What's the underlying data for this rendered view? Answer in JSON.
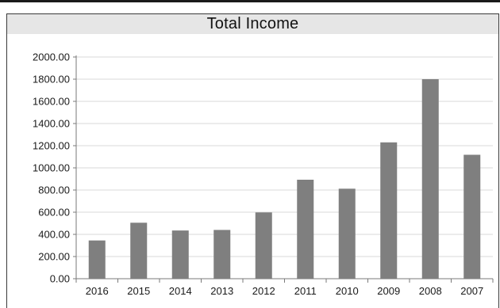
{
  "chart_data": {
    "type": "bar",
    "title": "Total Income",
    "categories": [
      "2016",
      "2015",
      "2014",
      "2013",
      "2012",
      "2011",
      "2010",
      "2009",
      "2008",
      "2007"
    ],
    "values": [
      345,
      505,
      435,
      440,
      598,
      893,
      812,
      1230,
      1800,
      1118
    ],
    "ylim": [
      0,
      2000
    ],
    "yticks": [
      "0.00",
      "200.00",
      "400.00",
      "600.00",
      "800.00",
      "1000.00",
      "1200.00",
      "1400.00",
      "1600.00",
      "1800.00",
      "2000.00"
    ],
    "grid": true,
    "legend": "none",
    "colors": {
      "bar": "#7f7f7f",
      "grid": "#d9d9d9",
      "axis": "#7a7a7a"
    }
  }
}
